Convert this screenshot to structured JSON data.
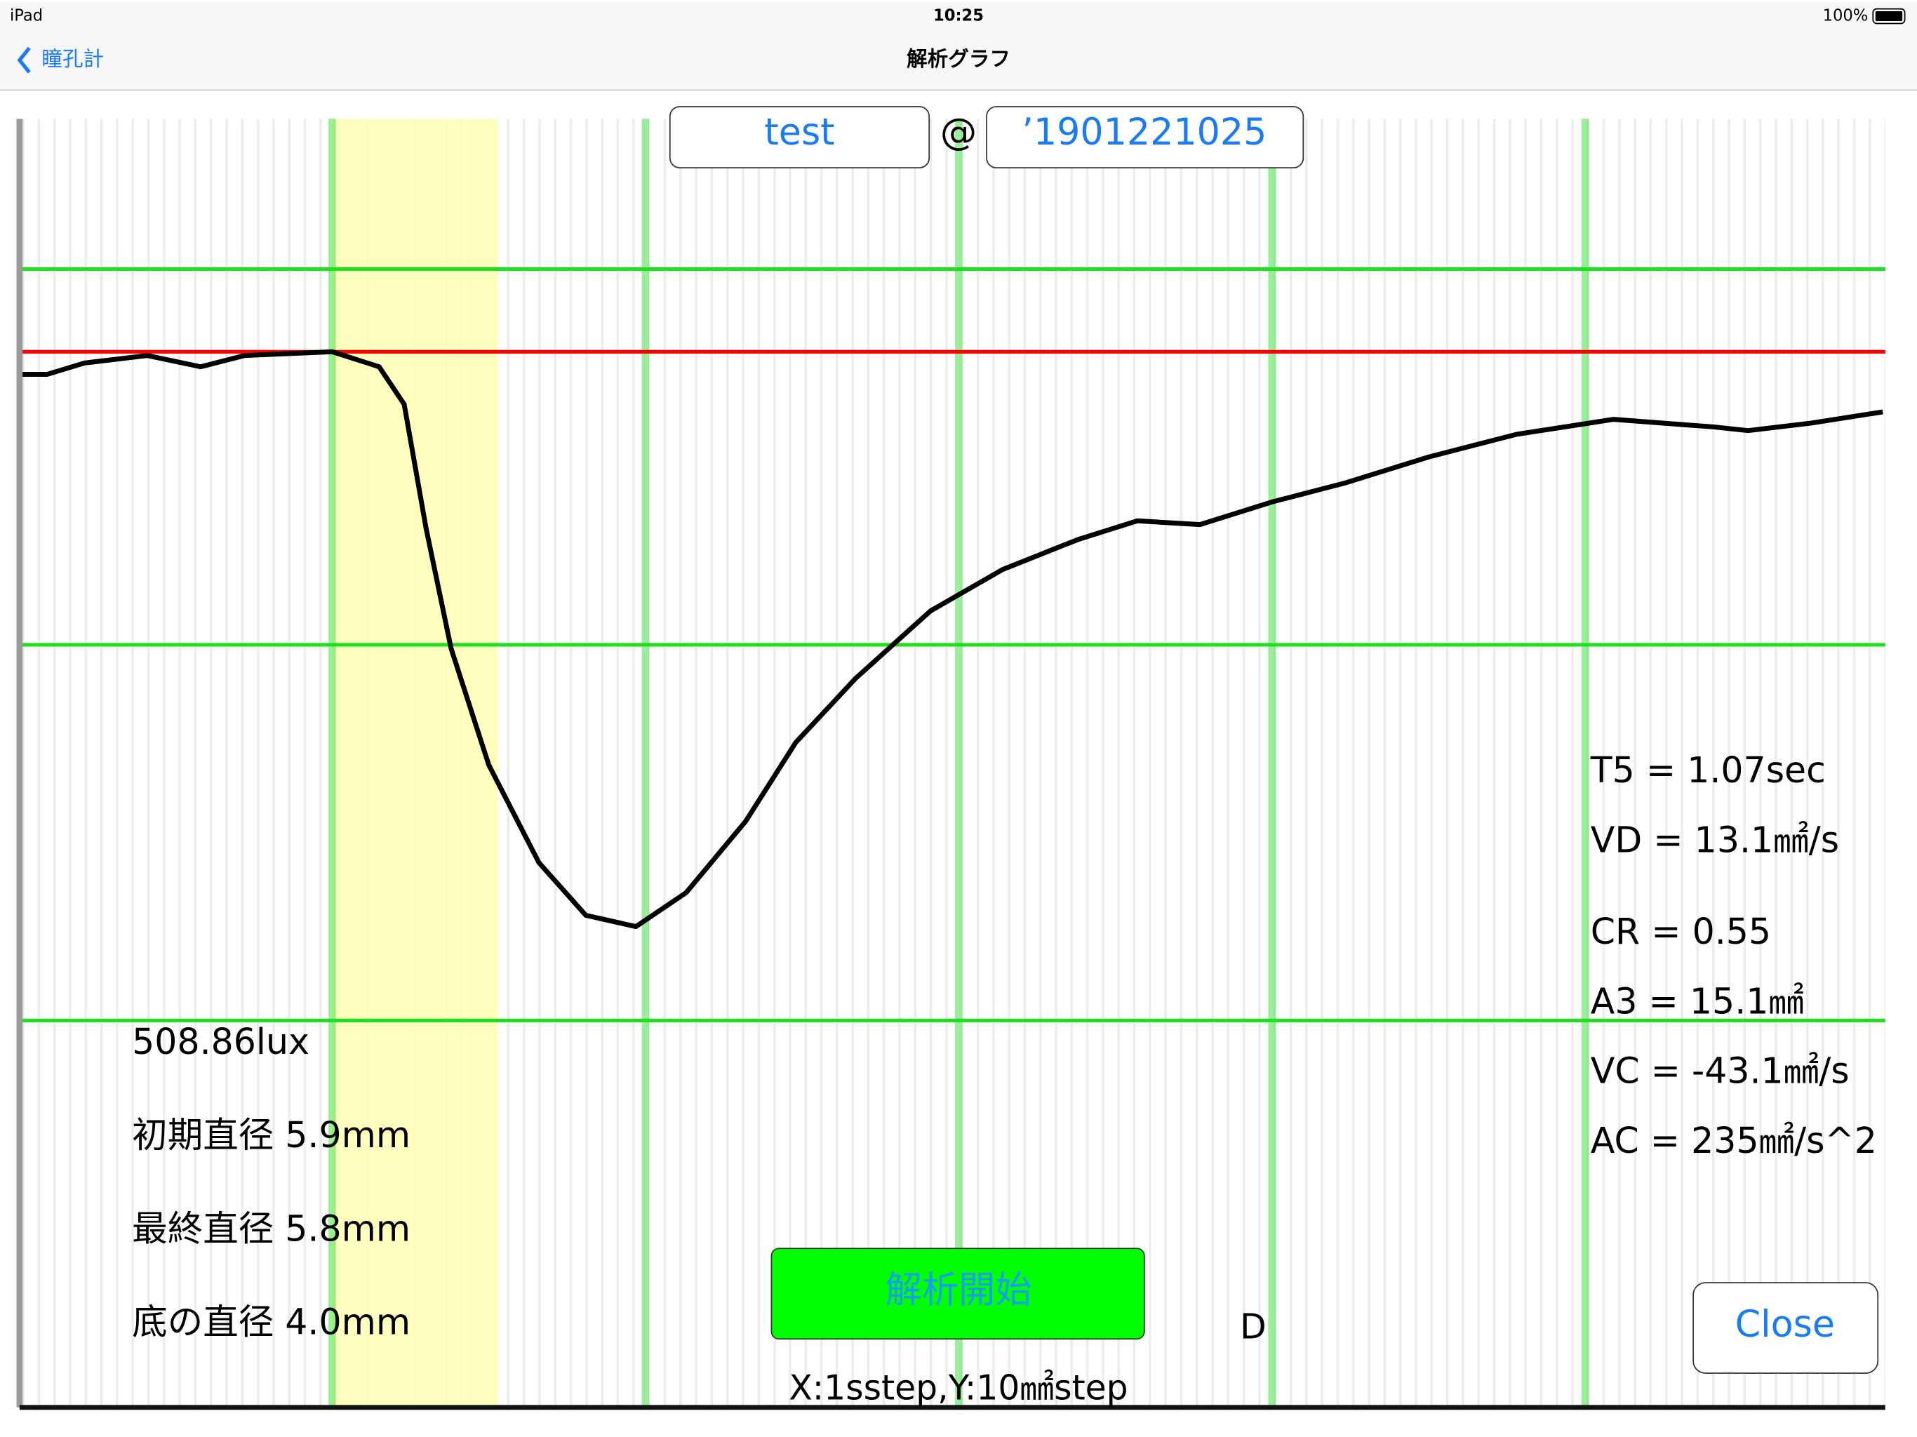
{
  "status_bar": {
    "device": "iPad",
    "time": "10:25",
    "battery": "100%"
  },
  "nav": {
    "back": "瞳孔計",
    "title": "解析グラフ"
  },
  "header": {
    "name": "test",
    "separator": "@",
    "id": "’1901221025"
  },
  "chart_data": {
    "type": "line",
    "x": [
      -0.99,
      -0.91,
      -0.79,
      -0.59,
      -0.42,
      -0.28,
      0,
      0.15,
      0.23,
      0.3,
      0.38,
      0.5,
      0.66,
      0.81,
      0.97,
      1.13,
      1.32,
      1.48,
      1.67,
      1.91,
      2.14,
      2.38,
      2.57,
      2.77,
      3.0,
      3.23,
      3.5,
      3.78,
      4.09,
      4.41,
      4.52,
      4.72,
      4.95
    ],
    "series": [
      {
        "color": "#000000",
        "values": [
          27.2,
          27.2,
          27.5,
          27.7,
          27.4,
          27.7,
          27.8,
          27.4,
          26.4,
          23.1,
          19.9,
          16.8,
          14.2,
          12.8,
          12.5,
          13.4,
          15.3,
          17.4,
          19.1,
          20.9,
          22.0,
          22.8,
          23.3,
          23.2,
          23.8,
          24.3,
          25.0,
          25.6,
          26.0,
          25.8,
          25.7,
          25.9,
          26.2
        ]
      }
    ],
    "xlim": [
      -0.99,
      4.95
    ],
    "ylim": [
      -0.3,
      34
    ],
    "xticks": [
      0,
      1,
      2,
      3,
      4
    ],
    "yticks": [
      10,
      20,
      30
    ],
    "grid_color": "#22dd22",
    "reference_line": 27.8,
    "reference_color": "#ff0000",
    "stimulus": [
      0,
      0.53
    ],
    "stimulus_color": "#ffffb8"
  },
  "left_stats": [
    "508.86lux",
    "初期直径 5.9mm",
    "最終直径 5.8mm",
    "底の直径 4.0mm"
  ],
  "right_stats": [
    "T5 = 1.07sec",
    "VD = 13.1㎟/s",
    "CR = 0.55",
    "A3 = 15.1㎟",
    "VC = -43.1㎟/s",
    "AC = 235㎟/s^2"
  ],
  "buttons": {
    "analyze": "解析開始",
    "close": "Close"
  },
  "marker": "D",
  "scale_note": "X:1sstep,Y:10㎟step"
}
